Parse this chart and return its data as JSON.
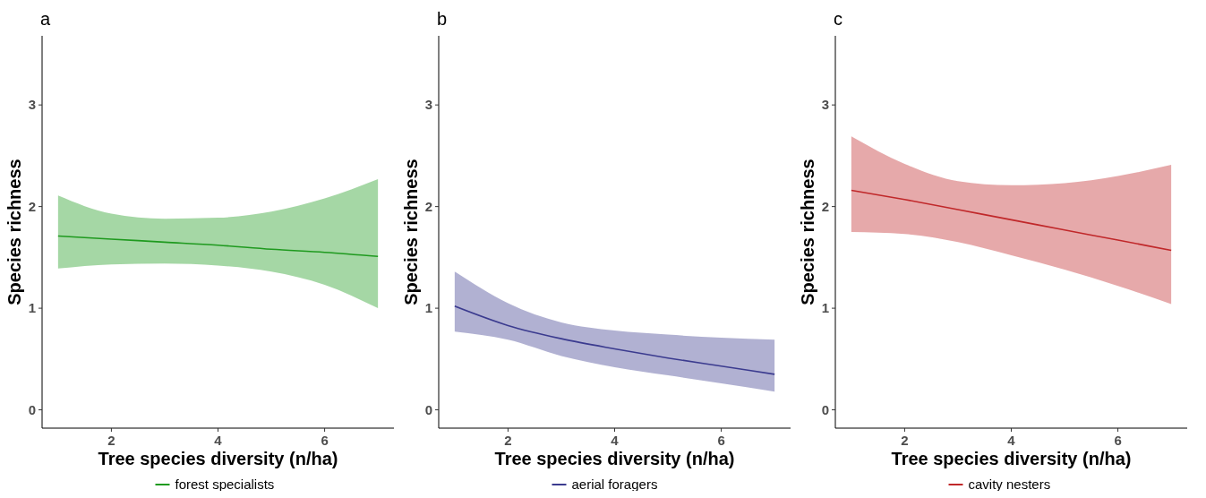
{
  "chart_data": [
    {
      "type": "line",
      "title": "a",
      "xlabel": "Tree species diversity (n/ha)",
      "ylabel": "Species richness",
      "x": [
        1,
        2,
        3,
        4,
        5,
        6,
        7
      ],
      "xlim": [
        0.7,
        7.3
      ],
      "xticks": [
        2,
        4,
        6
      ],
      "ylim": [
        -0.18,
        3.68
      ],
      "yticks": [
        0,
        1,
        2,
        3
      ],
      "grid": false,
      "legend": "bottom",
      "series": [
        {
          "name": "forest specialists",
          "color": "#1f9a1f",
          "values": [
            1.71,
            1.68,
            1.65,
            1.62,
            1.58,
            1.55,
            1.51
          ],
          "lower": [
            1.39,
            1.43,
            1.44,
            1.42,
            1.36,
            1.23,
            1.0
          ],
          "upper": [
            2.11,
            1.93,
            1.88,
            1.89,
            1.95,
            2.08,
            2.27
          ]
        }
      ]
    },
    {
      "type": "line",
      "title": "b",
      "xlabel": "Tree species diversity (n/ha)",
      "ylabel": "Species richness",
      "x": [
        1,
        2,
        3,
        4,
        5,
        6,
        7
      ],
      "xlim": [
        0.7,
        7.3
      ],
      "xticks": [
        2,
        4,
        6
      ],
      "ylim": [
        -0.18,
        3.68
      ],
      "yticks": [
        0,
        1,
        2,
        3
      ],
      "grid": false,
      "legend": "bottom",
      "series": [
        {
          "name": "aerial foragers",
          "color": "#3b3b8f",
          "values": [
            1.02,
            0.83,
            0.7,
            0.6,
            0.51,
            0.43,
            0.35
          ],
          "lower": [
            0.77,
            0.69,
            0.53,
            0.42,
            0.34,
            0.26,
            0.18
          ],
          "upper": [
            1.36,
            1.05,
            0.86,
            0.78,
            0.74,
            0.71,
            0.69
          ]
        }
      ]
    },
    {
      "type": "line",
      "title": "c",
      "xlabel": "Tree species diversity (n/ha)",
      "ylabel": "Species richness",
      "x": [
        1,
        2,
        3,
        4,
        5,
        6,
        7
      ],
      "xlim": [
        0.7,
        7.3
      ],
      "xticks": [
        2,
        4,
        6
      ],
      "ylim": [
        -0.18,
        3.68
      ],
      "yticks": [
        0,
        1,
        2,
        3
      ],
      "grid": false,
      "legend": "bottom",
      "series": [
        {
          "name": "cavity nesters",
          "color": "#c0282a",
          "values": [
            2.16,
            2.07,
            1.97,
            1.87,
            1.77,
            1.67,
            1.57
          ],
          "lower": [
            1.75,
            1.73,
            1.65,
            1.52,
            1.38,
            1.22,
            1.04
          ],
          "upper": [
            2.69,
            2.42,
            2.25,
            2.21,
            2.23,
            2.3,
            2.41
          ]
        }
      ]
    }
  ]
}
